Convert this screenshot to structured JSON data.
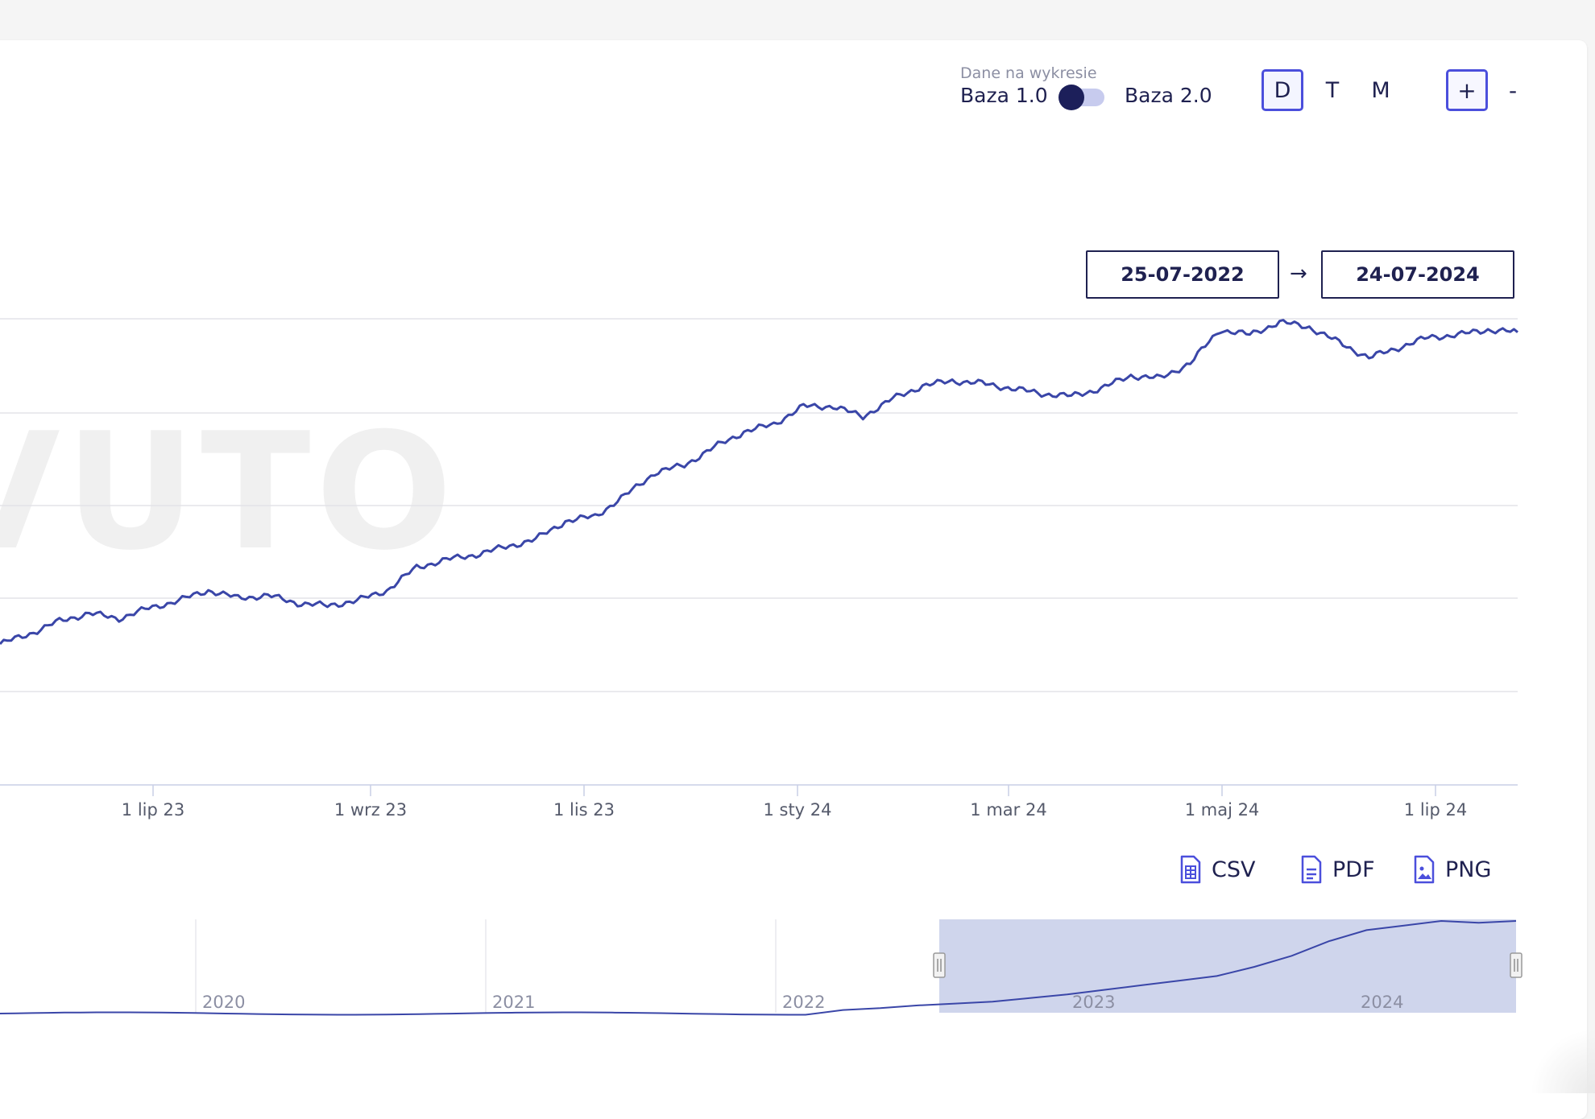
{
  "controls": {
    "dataset_label": "Dane na wykresie",
    "option_left": "Baza 1.0",
    "option_right": "Baza 2.0",
    "periods": [
      "D",
      "T",
      "M"
    ],
    "active_period": "D",
    "zoom_in": "+",
    "zoom_out": "-"
  },
  "date_range": {
    "from": "25-07-2022",
    "arrow": "→",
    "to": "24-07-2024"
  },
  "watermark": "VUTO",
  "exports": {
    "csv": "CSV",
    "pdf": "PDF",
    "png": "PNG"
  },
  "colors": {
    "line": "#3a46a8",
    "accent": "#4b4fdc",
    "navigator_selection": "#cfd5ec"
  },
  "chart_data": {
    "type": "line",
    "title": "",
    "xlabel": "",
    "ylabel": "",
    "x_tick_labels": [
      "1 lip 23",
      "1 wrz 23",
      "1 lis 23",
      "1 sty 24",
      "1 mar 24",
      "1 maj 24",
      "1 lip 24"
    ],
    "y_axis": "unlabeled",
    "grid": "horizontal",
    "series": [
      {
        "values": [
          0.37,
          0.39,
          0.415,
          0.43,
          0.42,
          0.44,
          0.455,
          0.475,
          0.46,
          0.465,
          0.45,
          0.445,
          0.455,
          0.475,
          0.52,
          0.535,
          0.545,
          0.56,
          0.575,
          0.61,
          0.62,
          0.66,
          0.705,
          0.72,
          0.755,
          0.785,
          0.8,
          0.835,
          0.835,
          0.815,
          0.85,
          0.875,
          0.885,
          0.88,
          0.87,
          0.86,
          0.855,
          0.87,
          0.895,
          0.89,
          0.92,
          0.985,
          0.975,
          1.0,
          0.99,
          0.96,
          0.93,
          0.95,
          0.97,
          0.975,
          0.985,
          0.98
        ]
      }
    ],
    "navigator": {
      "x_labels": [
        "2020",
        "2021",
        "2022",
        "2023",
        "2024"
      ],
      "selection": [
        "25-07-2022",
        "24-07-2024"
      ],
      "values": [
        0.02,
        0.02,
        0.03,
        0.025,
        0.02,
        0.01,
        0.015,
        0.02,
        0.03,
        0.05,
        0.08,
        0.1,
        0.12,
        0.16,
        0.2,
        0.25,
        0.3,
        0.35,
        0.4,
        0.5,
        0.62,
        0.78,
        0.9,
        0.95,
        1.0,
        0.98,
        1.0
      ]
    }
  }
}
